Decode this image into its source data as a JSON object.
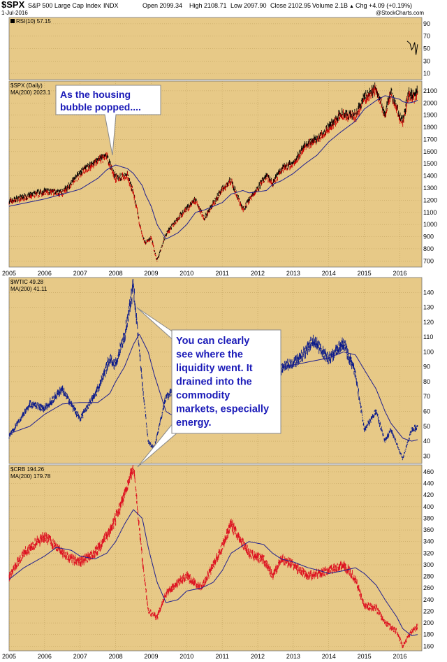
{
  "header": {
    "symbol": "$SPX",
    "name": "S&P 500 Large Cap Index",
    "exchange": "INDX",
    "date": "1-Jul-2016",
    "open": "Open 2099.34",
    "high": "High 2108.71",
    "low": "Low 2097.90",
    "close": "Close 2102.95",
    "volume": "Volume 2.1B",
    "change": "Chg +4.09 (+0.19%)",
    "change_arrow": "▲",
    "watermark": "@StockCharts.com"
  },
  "colors": {
    "panel_bg": "#e7c987",
    "price_line": "#000000",
    "up_bar": "#000000",
    "down_bar": "#cc0000",
    "ma_line": "#1f1f8f",
    "wtic_line": "#0b1a8a",
    "crb_line": "#dd1020",
    "callout_text": "#1a1ab8",
    "rsi_line": "#000000"
  },
  "chart_data": [
    {
      "type": "line",
      "title": "RSI(10) 57.15",
      "y_ticks": [
        10,
        30,
        50,
        70,
        90
      ],
      "ylim": [
        0,
        100
      ],
      "x": [
        "2016-03-15",
        "2016-04-01",
        "2016-04-15",
        "2016-05-01",
        "2016-05-15",
        "2016-06-01",
        "2016-06-15",
        "2016-07-01"
      ],
      "values": [
        62,
        60,
        58,
        48,
        52,
        60,
        40,
        57
      ]
    },
    {
      "type": "line",
      "legend": [
        "$SPX (Daily)",
        "MA(200) 2023.1"
      ],
      "y_ticks": [
        700,
        800,
        900,
        1000,
        1100,
        1200,
        1300,
        1400,
        1500,
        1600,
        1700,
        1800,
        1900,
        2000,
        2100
      ],
      "ylim": [
        650,
        2180
      ],
      "x_ticks": [
        "2005",
        "2006",
        "2007",
        "2008",
        "2009",
        "2010",
        "2011",
        "2012",
        "2013",
        "2014",
        "2015",
        "2016"
      ],
      "x": [
        "2005-01",
        "2005-07",
        "2006-01",
        "2006-07",
        "2007-01",
        "2007-07",
        "2007-10",
        "2008-01",
        "2008-05",
        "2008-07",
        "2008-10",
        "2008-11",
        "2009-01",
        "2009-03",
        "2009-06",
        "2009-10",
        "2010-01",
        "2010-04",
        "2010-07",
        "2011-01",
        "2011-04",
        "2011-08",
        "2011-10",
        "2012-04",
        "2012-06",
        "2012-09",
        "2013-01",
        "2013-05",
        "2013-09",
        "2014-01",
        "2014-05",
        "2014-10",
        "2015-01",
        "2015-05",
        "2015-08",
        "2015-10",
        "2016-01",
        "2016-02",
        "2016-04",
        "2016-06",
        "2016-07"
      ],
      "series": [
        {
          "name": "$SPX (Daily)",
          "values": [
            1190,
            1230,
            1270,
            1260,
            1420,
            1530,
            1560,
            1380,
            1400,
            1260,
            900,
            850,
            890,
            700,
            920,
            1050,
            1130,
            1200,
            1050,
            1290,
            1360,
            1120,
            1200,
            1400,
            1330,
            1460,
            1500,
            1650,
            1700,
            1800,
            1900,
            1890,
            2040,
            2120,
            1900,
            2090,
            1880,
            1850,
            2080,
            2040,
            2100
          ]
        },
        {
          "name": "MA(200) 2023.1",
          "values": [
            1150,
            1180,
            1210,
            1250,
            1290,
            1380,
            1450,
            1490,
            1460,
            1420,
            1320,
            1250,
            1150,
            1000,
            880,
            930,
            1000,
            1100,
            1120,
            1180,
            1250,
            1280,
            1260,
            1280,
            1330,
            1360,
            1420,
            1500,
            1570,
            1680,
            1760,
            1850,
            1950,
            2020,
            2060,
            2050,
            2030,
            2010,
            2000,
            2010,
            2023
          ]
        }
      ],
      "annotation": "As the housing bubble popped...."
    },
    {
      "type": "line",
      "legend": [
        "$WTIC 49.28",
        "MA(200) 41.11"
      ],
      "y_ticks": [
        30,
        40,
        50,
        60,
        70,
        80,
        90,
        100,
        110,
        120,
        130,
        140
      ],
      "ylim": [
        25,
        150
      ],
      "x": [
        "2005-01",
        "2005-08",
        "2006-01",
        "2006-07",
        "2007-01",
        "2007-07",
        "2007-11",
        "2008-01",
        "2008-04",
        "2008-07",
        "2008-09",
        "2008-12",
        "2009-02",
        "2009-06",
        "2009-10",
        "2010-01",
        "2010-06",
        "2011-01",
        "2011-04",
        "2011-10",
        "2012-03",
        "2012-06",
        "2012-10",
        "2013-03",
        "2013-08",
        "2014-01",
        "2014-06",
        "2014-10",
        "2015-01",
        "2015-05",
        "2015-08",
        "2015-10",
        "2016-02",
        "2016-05",
        "2016-07"
      ],
      "series": [
        {
          "name": "$WTIC",
          "values": [
            43,
            65,
            62,
            75,
            55,
            75,
            95,
            92,
            110,
            145,
            100,
            40,
            35,
            70,
            75,
            80,
            75,
            90,
            112,
            85,
            108,
            82,
            90,
            95,
            108,
            95,
            106,
            85,
            48,
            60,
            40,
            48,
            28,
            48,
            49
          ]
        },
        {
          "name": "MA(200)",
          "values": [
            45,
            50,
            58,
            65,
            66,
            66,
            72,
            80,
            90,
            105,
            112,
            100,
            85,
            60,
            55,
            62,
            68,
            75,
            82,
            90,
            95,
            96,
            90,
            92,
            94,
            96,
            100,
            98,
            88,
            75,
            60,
            52,
            42,
            40,
            41
          ]
        }
      ]
    },
    {
      "type": "line",
      "legend": [
        "$CRB 194.26",
        "MA(200) 179.78"
      ],
      "y_ticks": [
        160,
        180,
        200,
        220,
        240,
        260,
        280,
        300,
        320,
        340,
        360,
        380,
        400,
        420,
        440,
        460
      ],
      "ylim": [
        152,
        472
      ],
      "x_ticks": [
        "2005",
        "2006",
        "2007",
        "2008",
        "2009",
        "2010",
        "2011",
        "2012",
        "2013",
        "2014",
        "2015",
        "2016"
      ],
      "x": [
        "2005-01",
        "2005-06",
        "2006-01",
        "2006-05",
        "2006-10",
        "2007-01",
        "2007-06",
        "2007-10",
        "2008-01",
        "2008-04",
        "2008-07",
        "2008-10",
        "2008-12",
        "2009-03",
        "2009-06",
        "2009-10",
        "2010-01",
        "2010-06",
        "2010-10",
        "2011-01",
        "2011-04",
        "2011-10",
        "2012-03",
        "2012-06",
        "2012-09",
        "2013-01",
        "2013-06",
        "2013-10",
        "2014-01",
        "2014-06",
        "2014-10",
        "2015-01",
        "2015-05",
        "2015-08",
        "2015-12",
        "2016-02",
        "2016-05",
        "2016-07"
      ],
      "series": [
        {
          "name": "$CRB",
          "values": [
            280,
            320,
            350,
            330,
            310,
            305,
            320,
            350,
            380,
            420,
            470,
            310,
            220,
            210,
            250,
            270,
            280,
            260,
            300,
            330,
            370,
            320,
            310,
            280,
            310,
            300,
            280,
            285,
            290,
            300,
            275,
            230,
            225,
            200,
            185,
            160,
            185,
            194
          ]
        },
        {
          "name": "MA(200)",
          "values": [
            275,
            295,
            315,
            330,
            325,
            315,
            310,
            320,
            340,
            370,
            395,
            380,
            330,
            270,
            235,
            240,
            255,
            260,
            270,
            290,
            320,
            340,
            335,
            320,
            310,
            305,
            295,
            290,
            285,
            290,
            295,
            285,
            265,
            240,
            210,
            190,
            178,
            180
          ]
        }
      ]
    }
  ],
  "callouts": {
    "spx": [
      "As the housing",
      "bubble popped...."
    ],
    "liquidity": [
      "You can clearly",
      "see where the",
      "liquidity went. It",
      "drained into the",
      "commodity",
      "markets, especially",
      "energy."
    ]
  }
}
